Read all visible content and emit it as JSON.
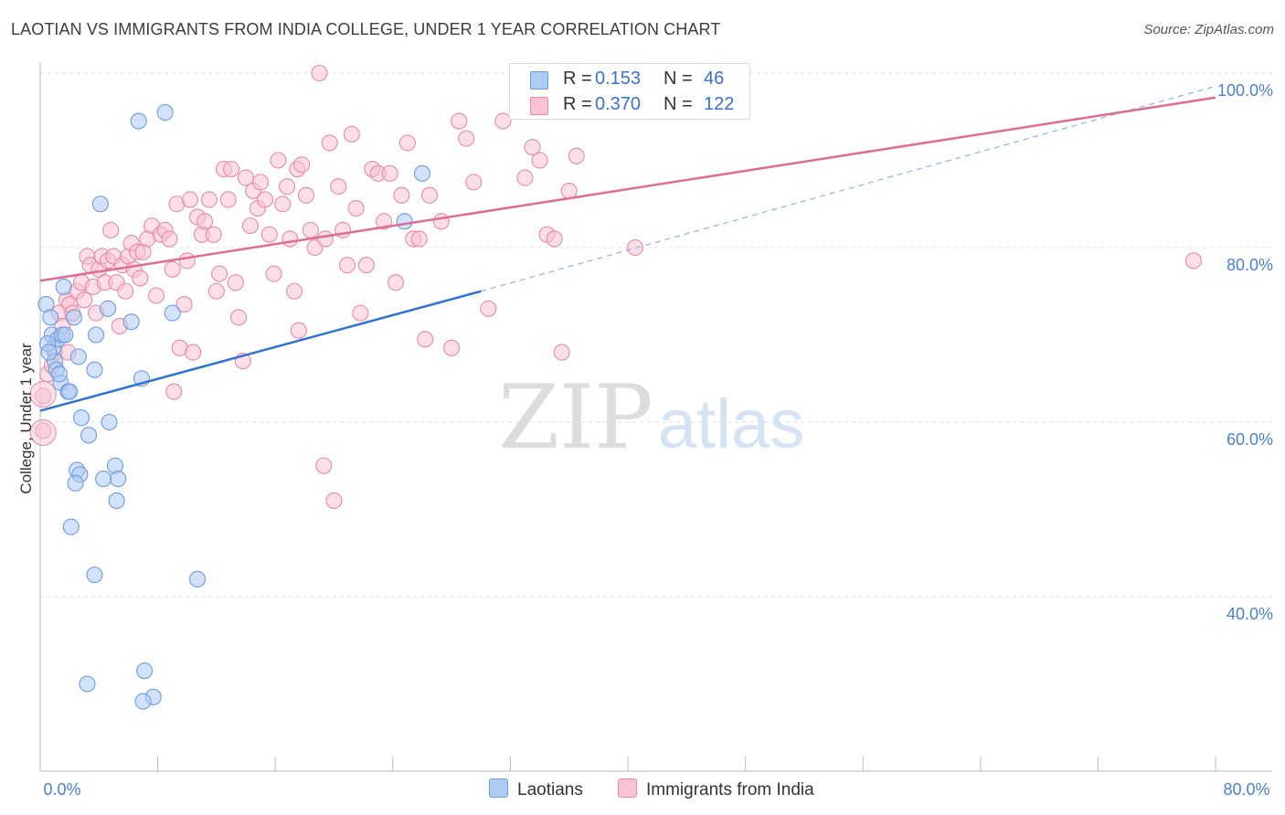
{
  "header": {
    "title": "LAOTIAN VS IMMIGRANTS FROM INDIA COLLEGE, UNDER 1 YEAR CORRELATION CHART",
    "source": "Source: ZipAtlas.com"
  },
  "watermark": {
    "zip": "ZIP",
    "atlas": "atlas"
  },
  "legend": {
    "rows": [
      {
        "r_label": "R =",
        "r_value": "0.153",
        "n_label": "N =",
        "n_value": "46",
        "swatch_color": "#aecbf2",
        "swatch_border": "#6b9be0"
      },
      {
        "r_label": "R =",
        "r_value": "0.370",
        "n_label": "N =",
        "n_value": "122",
        "swatch_color": "#f8c3d3",
        "swatch_border": "#e68aa7"
      }
    ]
  },
  "bottom_legend": [
    {
      "label": "Laotians",
      "color": "#aecbf2",
      "border": "#6b9be0"
    },
    {
      "label": "Immigrants from India",
      "color": "#f8c3d3",
      "border": "#e68aa7"
    }
  ],
  "chart_data": {
    "type": "scatter",
    "title": "LAOTIAN VS IMMIGRANTS FROM INDIA COLLEGE, UNDER 1 YEAR CORRELATION CHART",
    "xlabel": "",
    "ylabel": "College, Under 1 year",
    "xlim": [
      0,
      80
    ],
    "ylim": [
      20,
      100
    ],
    "x_tick_labels": [
      {
        "value": 0,
        "label": "0.0%"
      },
      {
        "value": 80,
        "label": "80.0%"
      }
    ],
    "y_tick_labels": [
      {
        "value": 100,
        "label": "100.0%"
      },
      {
        "value": 80,
        "label": "80.0%"
      },
      {
        "value": 60,
        "label": "60.0%"
      },
      {
        "value": 40,
        "label": "40.0%"
      }
    ],
    "series": [
      {
        "name": "Laotians",
        "color": "#6b9be0",
        "fill": "#aecbf2",
        "points": [
          [
            0.4,
            73.5
          ],
          [
            0.7,
            72
          ],
          [
            0.8,
            70
          ],
          [
            0.9,
            68.5
          ],
          [
            1.0,
            67
          ],
          [
            1.1,
            66
          ],
          [
            1.2,
            69.5
          ],
          [
            1.4,
            64.5
          ],
          [
            1.5,
            70
          ],
          [
            1.6,
            75.5
          ],
          [
            1.7,
            70
          ],
          [
            1.9,
            63.5
          ],
          [
            2.0,
            63.5
          ],
          [
            2.3,
            72
          ],
          [
            2.6,
            67.5
          ],
          [
            2.8,
            60.5
          ],
          [
            3.3,
            58.5
          ],
          [
            3.7,
            66
          ],
          [
            3.8,
            70
          ],
          [
            4.1,
            85
          ],
          [
            4.3,
            53.5
          ],
          [
            4.6,
            73
          ],
          [
            4.7,
            60
          ],
          [
            5.1,
            55
          ],
          [
            5.3,
            53.5
          ],
          [
            6.2,
            71.5
          ],
          [
            6.7,
            94.5
          ],
          [
            6.9,
            65
          ],
          [
            8.5,
            95.5
          ],
          [
            9.0,
            72.5
          ],
          [
            2.5,
            54.5
          ],
          [
            2.7,
            54
          ],
          [
            2.4,
            53
          ],
          [
            5.2,
            51
          ],
          [
            2.1,
            48
          ],
          [
            3.7,
            42.5
          ],
          [
            10.7,
            42
          ],
          [
            3.2,
            30
          ],
          [
            7.1,
            31.5
          ],
          [
            7.7,
            28.5
          ],
          [
            7.0,
            28
          ],
          [
            24.8,
            83
          ],
          [
            26.0,
            88.5
          ],
          [
            0.5,
            69
          ],
          [
            1.3,
            65.5
          ],
          [
            0.6,
            68
          ]
        ]
      },
      {
        "name": "Immigrants from India",
        "color": "#e68aa7",
        "fill": "#f8c3d3",
        "points": [
          [
            0.2,
            63
          ],
          [
            0.2,
            59
          ],
          [
            0.5,
            65.5
          ],
          [
            0.8,
            66.5
          ],
          [
            1.0,
            68
          ],
          [
            1.3,
            72.5
          ],
          [
            1.5,
            71
          ],
          [
            1.8,
            74
          ],
          [
            2.0,
            73.5
          ],
          [
            2.2,
            72.5
          ],
          [
            2.5,
            75
          ],
          [
            2.8,
            76
          ],
          [
            3.0,
            74
          ],
          [
            3.2,
            79
          ],
          [
            3.4,
            78
          ],
          [
            3.6,
            75.5
          ],
          [
            3.8,
            72.5
          ],
          [
            4.0,
            77.5
          ],
          [
            4.2,
            79
          ],
          [
            4.4,
            76
          ],
          [
            4.6,
            78.5
          ],
          [
            4.8,
            82
          ],
          [
            5.0,
            79
          ],
          [
            5.2,
            76
          ],
          [
            5.4,
            71
          ],
          [
            5.6,
            78
          ],
          [
            5.8,
            75
          ],
          [
            6.0,
            79
          ],
          [
            6.2,
            80.5
          ],
          [
            6.4,
            77.5
          ],
          [
            6.6,
            79.5
          ],
          [
            6.8,
            76.5
          ],
          [
            7.0,
            79.5
          ],
          [
            7.3,
            81
          ],
          [
            7.6,
            82.5
          ],
          [
            7.9,
            74.5
          ],
          [
            8.2,
            81.5
          ],
          [
            8.5,
            82
          ],
          [
            8.8,
            81
          ],
          [
            9.0,
            77.5
          ],
          [
            9.3,
            85
          ],
          [
            9.5,
            68.5
          ],
          [
            9.8,
            73.5
          ],
          [
            10.0,
            78.5
          ],
          [
            10.2,
            85.5
          ],
          [
            10.4,
            68
          ],
          [
            10.7,
            83.5
          ],
          [
            11.0,
            81.5
          ],
          [
            11.2,
            83
          ],
          [
            11.5,
            85.5
          ],
          [
            11.8,
            81.5
          ],
          [
            12.0,
            75
          ],
          [
            12.2,
            77
          ],
          [
            12.5,
            89
          ],
          [
            12.8,
            85.5
          ],
          [
            13.0,
            89
          ],
          [
            13.3,
            76
          ],
          [
            13.5,
            72
          ],
          [
            13.8,
            67
          ],
          [
            14.0,
            88
          ],
          [
            14.3,
            82.5
          ],
          [
            14.5,
            86.5
          ],
          [
            14.8,
            84.5
          ],
          [
            15.0,
            87.5
          ],
          [
            15.3,
            85.5
          ],
          [
            15.6,
            81.5
          ],
          [
            15.9,
            77
          ],
          [
            16.2,
            90
          ],
          [
            16.5,
            85
          ],
          [
            16.8,
            87
          ],
          [
            17.0,
            81
          ],
          [
            17.3,
            75
          ],
          [
            17.5,
            89
          ],
          [
            17.8,
            89.5
          ],
          [
            18.1,
            86
          ],
          [
            18.4,
            82
          ],
          [
            18.7,
            80
          ],
          [
            19.0,
            100
          ],
          [
            19.4,
            81
          ],
          [
            19.7,
            92
          ],
          [
            20.0,
            51
          ],
          [
            20.3,
            87
          ],
          [
            20.6,
            82
          ],
          [
            20.9,
            78
          ],
          [
            21.2,
            93
          ],
          [
            21.5,
            84.5
          ],
          [
            21.8,
            72.5
          ],
          [
            22.2,
            78
          ],
          [
            22.6,
            89
          ],
          [
            23.0,
            88.5
          ],
          [
            23.4,
            83
          ],
          [
            23.8,
            88.5
          ],
          [
            24.2,
            76
          ],
          [
            24.6,
            86
          ],
          [
            25.0,
            92
          ],
          [
            25.4,
            81
          ],
          [
            25.8,
            81
          ],
          [
            26.5,
            86
          ],
          [
            27.3,
            83
          ],
          [
            28.0,
            68.5
          ],
          [
            28.5,
            94.5
          ],
          [
            29.0,
            92.5
          ],
          [
            29.5,
            87.5
          ],
          [
            30.5,
            73
          ],
          [
            31.5,
            94.5
          ],
          [
            33.0,
            88
          ],
          [
            33.5,
            91.5
          ],
          [
            34.0,
            90
          ],
          [
            34.5,
            81.5
          ],
          [
            35.0,
            81
          ],
          [
            35.5,
            68
          ],
          [
            36.0,
            86.5
          ],
          [
            36.5,
            90.5
          ],
          [
            40.5,
            80
          ],
          [
            78.5,
            78.5
          ],
          [
            19.3,
            55
          ],
          [
            17.6,
            70.5
          ],
          [
            9.1,
            63.5
          ],
          [
            1.9,
            68
          ],
          [
            26.2,
            69.5
          ]
        ]
      }
    ],
    "trend_lines": [
      {
        "series": "Laotians",
        "color": "#2e72d2",
        "solid_from": [
          0,
          61.3
        ],
        "solid_to": [
          30,
          75
        ],
        "dashed_to": [
          80,
          98.5
        ]
      },
      {
        "series": "Immigrants from India",
        "color": "#e06b93",
        "from": [
          0,
          76.2
        ],
        "to": [
          80,
          97.2
        ]
      }
    ],
    "grid": "horizontal dashed"
  }
}
